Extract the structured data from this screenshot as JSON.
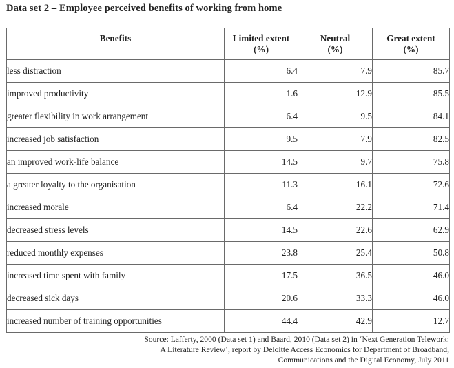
{
  "title": "Data set 2 – Employee perceived benefits of working from home",
  "headers": [
    "Benefits",
    "Limited extent (%)",
    "Neutral (%)",
    "Great extent (%)"
  ],
  "rows": [
    [
      "less distraction",
      "6.4",
      "7.9",
      "85.7"
    ],
    [
      "improved productivity",
      "1.6",
      "12.9",
      "85.5"
    ],
    [
      "greater flexibility in work arrangement",
      "6.4",
      "9.5",
      "84.1"
    ],
    [
      "increased job satisfaction",
      "9.5",
      "7.9",
      "82.5"
    ],
    [
      "an improved work-life balance",
      "14.5",
      "9.7",
      "75.8"
    ],
    [
      "a greater loyalty to the organisation",
      "11.3",
      "16.1",
      "72.6"
    ],
    [
      "increased morale",
      "6.4",
      "22.2",
      "71.4"
    ],
    [
      "decreased stress levels",
      "14.5",
      "22.6",
      "62.9"
    ],
    [
      "reduced monthly expenses",
      "23.8",
      "25.4",
      "50.8"
    ],
    [
      "increased time spent with family",
      "17.5",
      "36.5",
      "46.0"
    ],
    [
      "decreased sick days",
      "20.6",
      "33.3",
      "46.0"
    ],
    [
      "increased number of training opportunities",
      "44.4",
      "42.9",
      "12.7"
    ]
  ],
  "source": [
    "Source: Lafferty, 2000 (Data set 1) and Baard, 2010 (Data set 2) in ‘Next Generation Telework:",
    "A Literature Review’, report by Deloitte Access Economics for Department of Broadband,",
    "Communications and the Digital Economy, July 2011"
  ]
}
